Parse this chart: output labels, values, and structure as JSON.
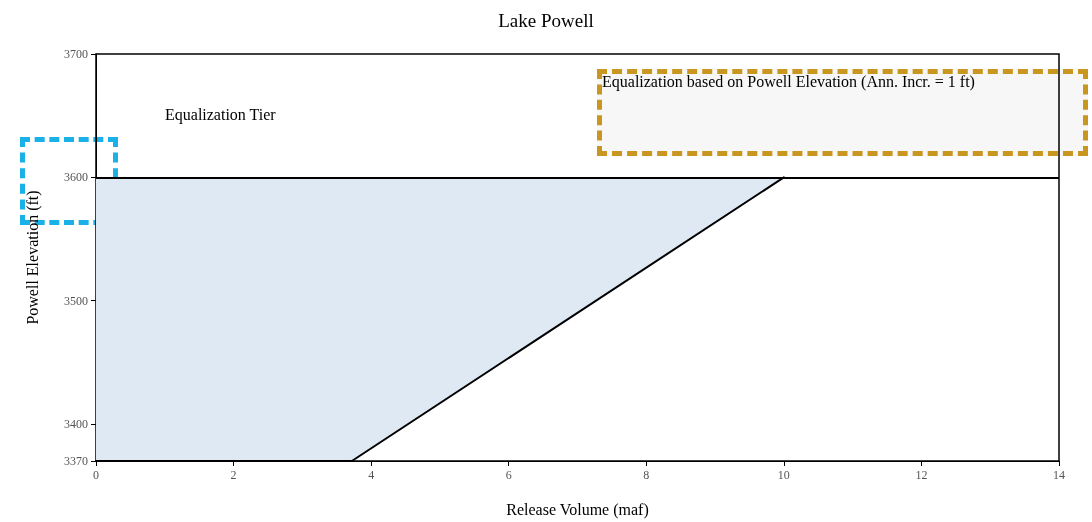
{
  "chart_data": {
    "type": "line",
    "title": "Lake Powell",
    "xlabel": "Release Volume (maf)",
    "ylabel": "Powell Elevation (ft)",
    "annotations": [
      "Equalization Tier",
      "Equalization based on Powell Elevation (Ann. Incr. = 1 ft)"
    ],
    "series": [
      {
        "color": "#000000",
        "x": [
          0,
          3.72,
          10
        ],
        "values": [
          3370,
          3370,
          3600
        ],
        "lower": [
          3370,
          3370,
          3600
        ],
        "upper": [
          3600,
          3600,
          3600
        ]
      }
    ],
    "ref_lines": [
      {
        "axis": "y",
        "value": 3600,
        "color": "#000000"
      }
    ],
    "xlim": [
      0,
      14
    ],
    "xticks": [
      0,
      2,
      4,
      6,
      8,
      10,
      12,
      14
    ],
    "ylim": [
      3370,
      3700
    ],
    "yticks": [
      3370,
      3400,
      3500,
      3600,
      3700
    ],
    "grid": false,
    "marker": "none",
    "line_style": "solid"
  }
}
